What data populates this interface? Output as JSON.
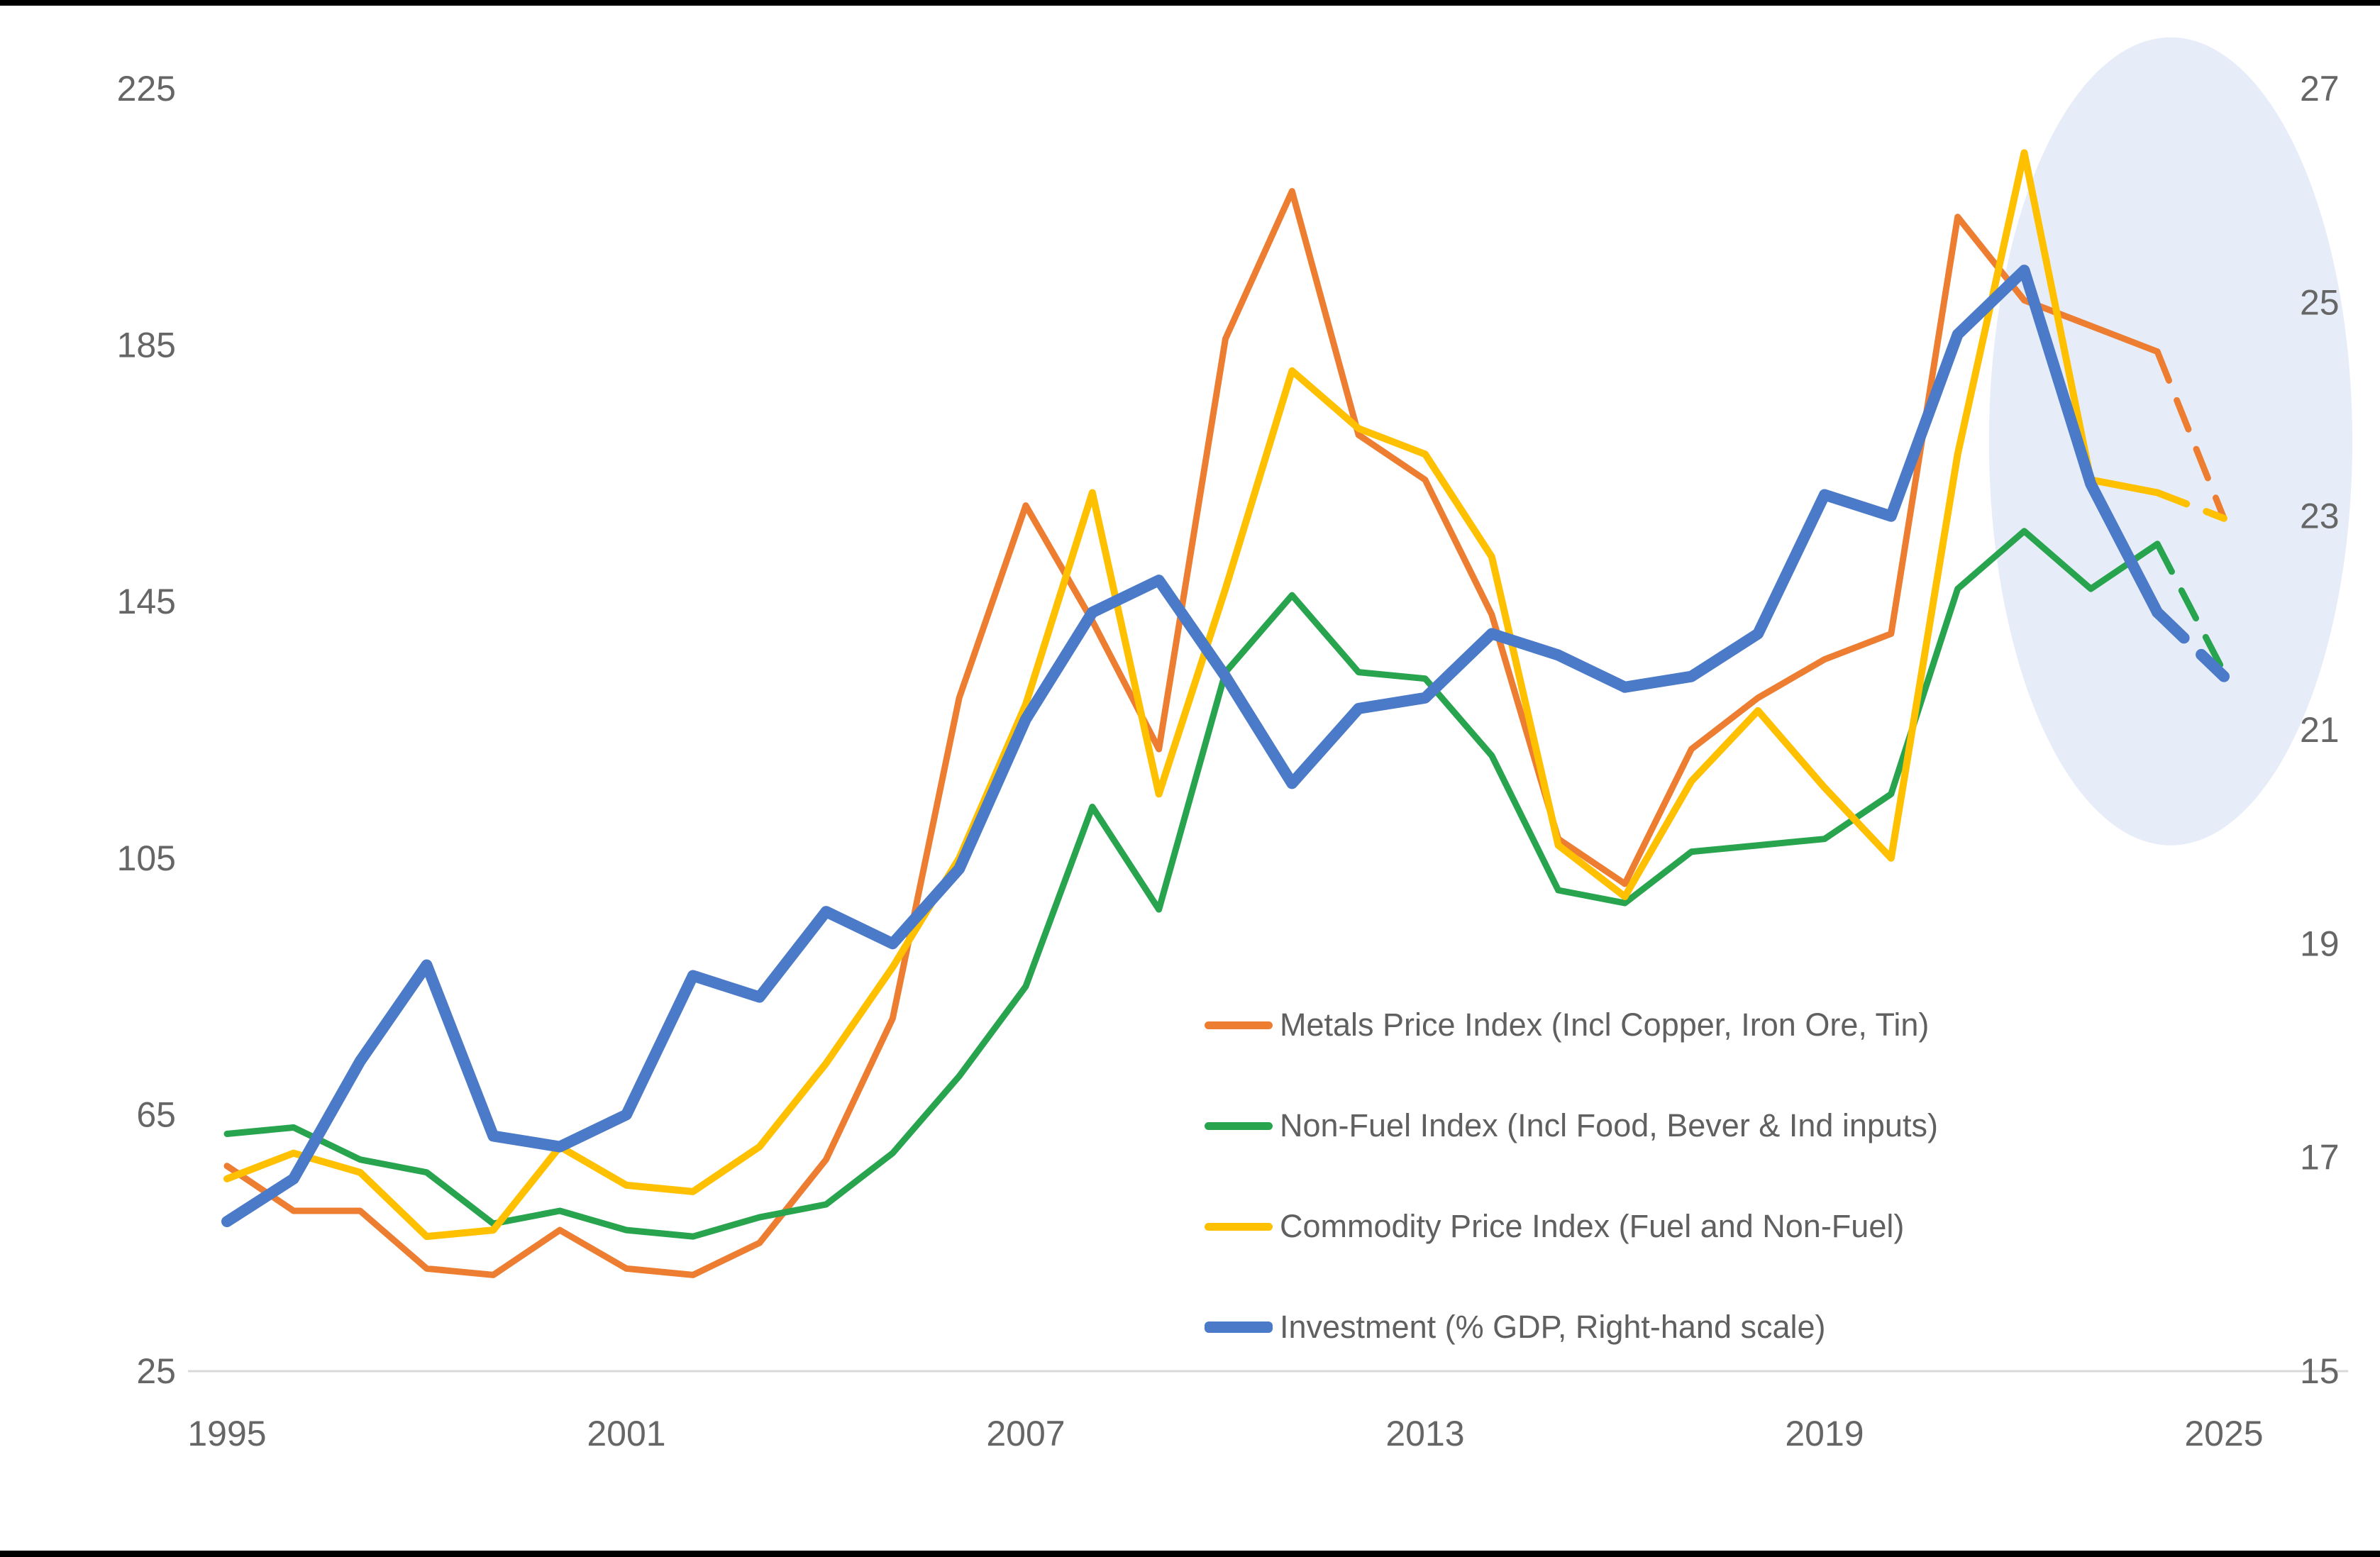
{
  "window": {
    "top_bar_color": "#000000",
    "bottom_bar_color": "#000000",
    "background_color": "#ffffff"
  },
  "styles": {
    "axis_text_color": "#666666",
    "axis_line_color": "#d9d9d9",
    "legend_text_color": "#606060",
    "highlight_fill": "#e7edf8"
  },
  "chart_data": {
    "type": "line",
    "title": "",
    "grid": "off",
    "legend_position": "inside-bottom-right",
    "x": [
      1995,
      1996,
      1997,
      1998,
      1999,
      2000,
      2001,
      2002,
      2003,
      2004,
      2005,
      2006,
      2007,
      2008,
      2009,
      2010,
      2011,
      2012,
      2013,
      2014,
      2015,
      2016,
      2017,
      2018,
      2019,
      2020,
      2021,
      2022,
      2023,
      2024,
      2025
    ],
    "x_tick_labels": [
      "1995",
      "2001",
      "2007",
      "2013",
      "2019",
      "2025"
    ],
    "x_ticks": [
      1995,
      2001,
      2007,
      2013,
      2019,
      2025
    ],
    "left_axis": {
      "range": [
        25,
        225
      ],
      "ticks": [
        25,
        65,
        105,
        145,
        185,
        225
      ]
    },
    "right_axis": {
      "range": [
        15,
        27
      ],
      "ticks": [
        15,
        17,
        19,
        21,
        23,
        25,
        27
      ]
    },
    "forecast_start_year": 2024,
    "highlight_ellipse": {
      "center_year": 2024.2,
      "center_left_value": 170,
      "rx_years": 2.73,
      "ry_left_units": 63
    },
    "series": [
      {
        "name": "Metals Price Index (Incl Copper, Iron Ore, Tin)",
        "color": "#ED7D31",
        "axis": "left",
        "width": 9,
        "values": [
          57,
          50,
          50,
          41,
          40,
          47,
          41,
          40,
          45,
          58,
          80,
          130,
          160,
          142,
          122,
          186,
          209,
          171,
          164,
          143,
          108,
          101,
          122,
          130,
          136,
          140,
          205,
          192,
          188,
          184,
          158
        ]
      },
      {
        "name": "Non-Fuel Index (Incl Food, Bever & Ind inputs)",
        "color": "#27A44D",
        "axis": "left",
        "width": 9,
        "values": [
          62,
          63,
          58,
          56,
          48,
          50,
          47,
          46,
          49,
          51,
          59,
          71,
          85,
          113,
          97,
          134,
          146,
          134,
          133,
          121,
          100,
          98,
          106,
          107,
          108,
          115,
          147,
          156,
          147,
          154,
          134
        ]
      },
      {
        "name": "Commodity Price Index (Fuel and Non-Fuel)",
        "color": "#FFC000",
        "axis": "left",
        "width": 10,
        "values": [
          55,
          59,
          56,
          46,
          47,
          60,
          54,
          53,
          60,
          73,
          88,
          105,
          129,
          162,
          115,
          147,
          181,
          172,
          168,
          152,
          107,
          99,
          117,
          128,
          116,
          105,
          168,
          215,
          164,
          162,
          158
        ]
      },
      {
        "name": "Investment (% GDP, Right-hand scale)",
        "color": "#4A7AC8",
        "axis": "right",
        "width": 16,
        "values": [
          16.4,
          16.8,
          17.9,
          18.8,
          17.2,
          17.1,
          17.4,
          18.7,
          18.5,
          19.3,
          19.0,
          19.7,
          21.1,
          22.1,
          22.4,
          21.5,
          20.5,
          21.2,
          21.3,
          21.9,
          21.7,
          21.4,
          21.5,
          21.9,
          23.2,
          23.0,
          24.7,
          25.3,
          23.3,
          22.1,
          21.5
        ]
      }
    ]
  }
}
